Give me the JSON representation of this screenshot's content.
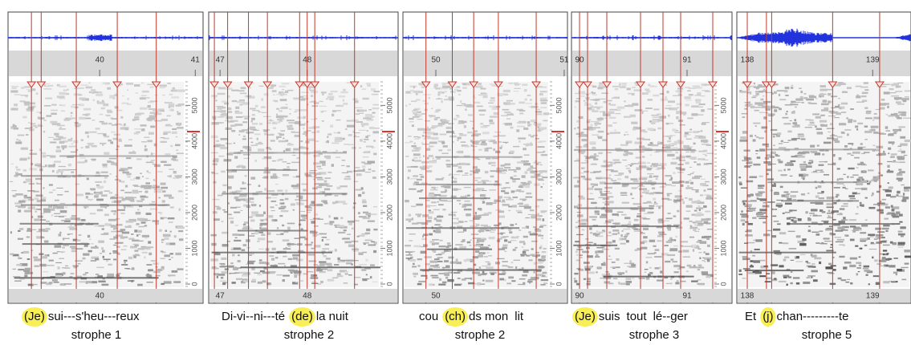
{
  "freq_ticks": [
    0,
    1000,
    2000,
    3000,
    4000,
    5000
  ],
  "panels": [
    {
      "ruler": [
        "40",
        "41"
      ],
      "caption": [
        {
          "text": "(Je)",
          "highlight": true
        },
        {
          "text": "sui---s'heu---reux",
          "highlight": false
        }
      ],
      "label": "strophe 1"
    },
    {
      "ruler": [
        "47",
        "48"
      ],
      "caption": [
        {
          "text": "Di-vi--ni---té",
          "highlight": false
        },
        {
          "text": "(de)",
          "highlight": true
        },
        {
          "text": "la nuit",
          "highlight": false
        }
      ],
      "label": "strophe 2"
    },
    {
      "ruler": [
        "50",
        "51"
      ],
      "caption": [
        {
          "text": "cou",
          "highlight": false
        },
        {
          "text": "(ch)",
          "highlight": true
        },
        {
          "text": "ds mon",
          "highlight": false
        },
        {
          "text": "lit",
          "highlight": false
        }
      ],
      "label": "strophe 2"
    },
    {
      "ruler": [
        "90",
        "91"
      ],
      "caption": [
        {
          "text": "(Je)",
          "highlight": true
        },
        {
          "text": "suis",
          "highlight": false
        },
        {
          "text": "tout",
          "highlight": false
        },
        {
          "text": "lé--ger",
          "highlight": false
        }
      ],
      "label": "strophe 3"
    },
    {
      "ruler": [
        "138",
        "139"
      ],
      "caption": [
        {
          "text": "Et",
          "highlight": false
        },
        {
          "text": "(j)",
          "highlight": true
        },
        {
          "text": "chan---------te",
          "highlight": false
        }
      ],
      "label": "strophe 5"
    }
  ]
}
